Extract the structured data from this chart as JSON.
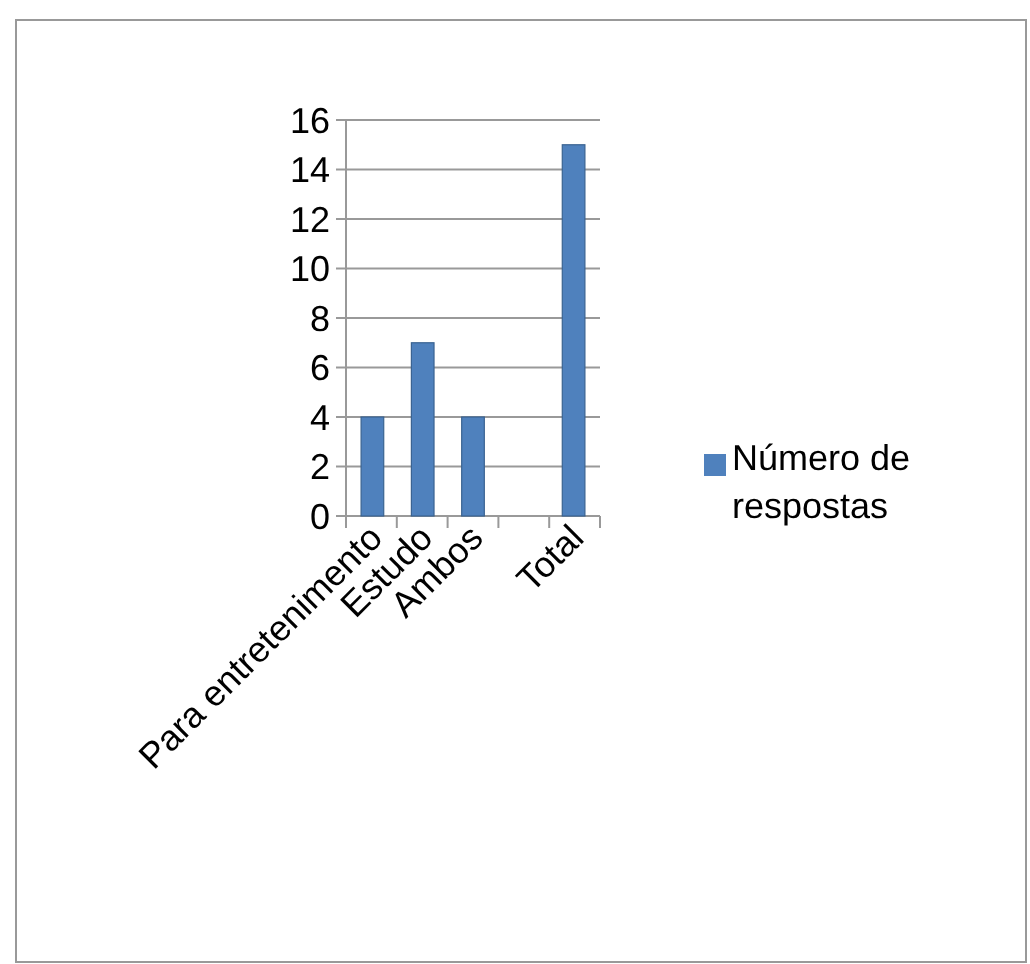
{
  "chart_data": {
    "type": "bar",
    "categories": [
      "Para entretenimento",
      "Estudo",
      "Ambos",
      null,
      "Total"
    ],
    "series": [
      {
        "name": "Número de respostas",
        "color": "#4f81bd",
        "values": [
          4,
          7,
          4,
          null,
          15
        ]
      }
    ],
    "ylim": [
      0,
      16
    ],
    "yticks": [
      0,
      2,
      4,
      6,
      8,
      10,
      12,
      14,
      16
    ],
    "grid": "y",
    "legend": "right"
  }
}
